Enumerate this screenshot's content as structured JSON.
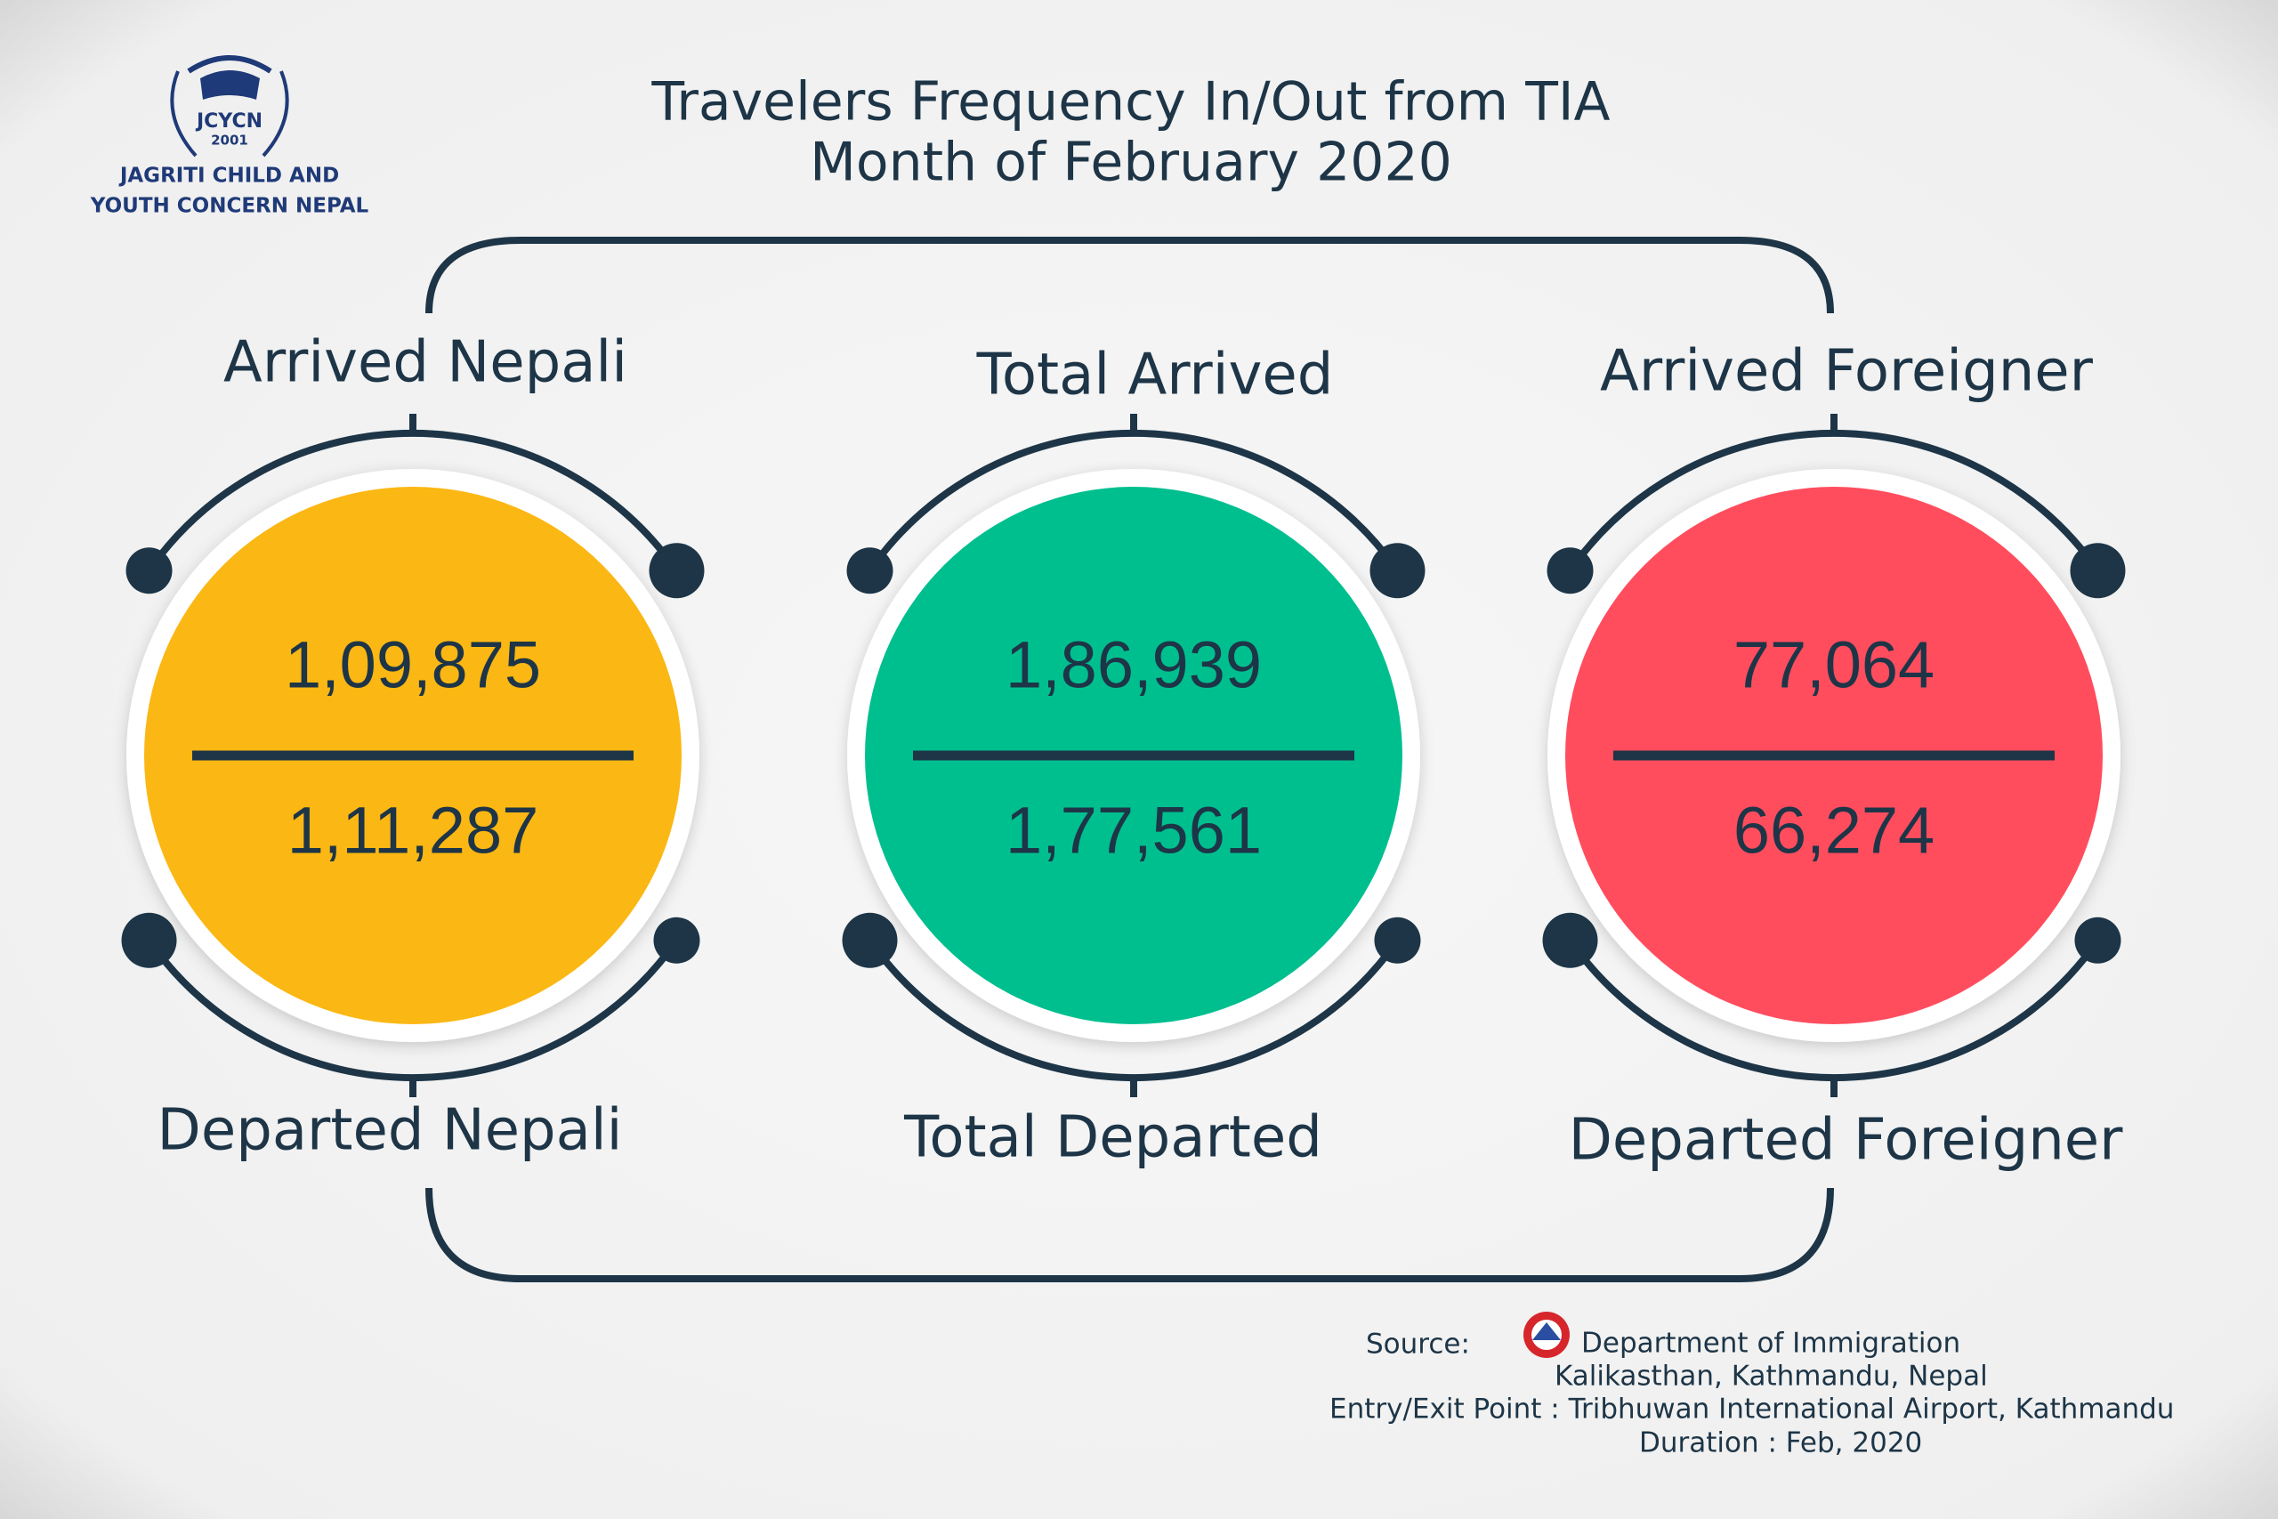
{
  "logo": {
    "abbr": "JCYCN",
    "year": "2001",
    "name_lines": [
      "JAGRITI CHILD AND",
      "YOUTH CONCERN NEPAL"
    ]
  },
  "title": {
    "lines": [
      "Travelers Frequency In/Out from TIA",
      "Month of February 2020"
    ]
  },
  "panels": [
    {
      "top_label": "Arrived Nepali",
      "arrived": "1,09,875",
      "departed": "1,11,287",
      "bottom_label": "Departed Nepali",
      "color": "#fbb713"
    },
    {
      "top_label": "Total Arrived",
      "arrived": "1,86,939",
      "departed": "1,77,561",
      "bottom_label": "Total Departed",
      "color": "#00bf8f"
    },
    {
      "top_label": "Arrived Foreigner",
      "arrived": "77,064",
      "departed": "66,274",
      "bottom_label": "Departed Foreigner",
      "color": "#ff4d5e"
    }
  ],
  "source": {
    "label": "Source:",
    "lines": [
      "Department of Immigration",
      "Kalikasthan, Kathmandu, Nepal",
      "Entry/Exit Point : Tribhuwan International Airport, Kathmandu",
      "Duration : Feb, 2020"
    ]
  }
}
